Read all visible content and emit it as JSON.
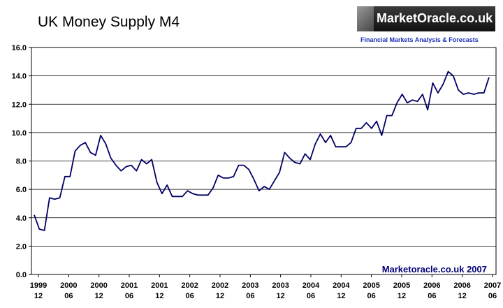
{
  "chart_data": {
    "type": "line",
    "title": "UK Money Supply M4",
    "xlabel": "",
    "ylabel": "",
    "ylim": [
      0,
      16
    ],
    "yticks": [
      "0.0",
      "2.0",
      "4.0",
      "6.0",
      "8.0",
      "10.0",
      "12.0",
      "14.0",
      "16.0"
    ],
    "grid": true,
    "series_color": "#000066",
    "x_tick_labels": [
      {
        "year": "1999",
        "month": "12"
      },
      {
        "year": "2000",
        "month": "06"
      },
      {
        "year": "2000",
        "month": "12"
      },
      {
        "year": "2001",
        "month": "06"
      },
      {
        "year": "2001",
        "month": "12"
      },
      {
        "year": "2002",
        "month": "06"
      },
      {
        "year": "2002",
        "month": "12"
      },
      {
        "year": "2003",
        "month": "06"
      },
      {
        "year": "2003",
        "month": "12"
      },
      {
        "year": "2004",
        "month": "06"
      },
      {
        "year": "2004",
        "month": "12"
      },
      {
        "year": "2005",
        "month": "06"
      },
      {
        "year": "2005",
        "month": "12"
      },
      {
        "year": "2006",
        "month": "06"
      },
      {
        "year": "2006",
        "month": "12"
      },
      {
        "year": "2007",
        "month": "06"
      }
    ],
    "values": [
      4.2,
      3.2,
      3.1,
      5.4,
      5.3,
      5.4,
      6.9,
      6.9,
      8.7,
      9.1,
      9.3,
      8.6,
      8.4,
      9.8,
      9.2,
      8.2,
      7.7,
      7.3,
      7.6,
      7.7,
      7.3,
      8.1,
      7.8,
      8.1,
      6.5,
      5.7,
      6.3,
      5.5,
      5.5,
      5.5,
      5.9,
      5.7,
      5.6,
      5.6,
      5.6,
      6.1,
      7.0,
      6.8,
      6.8,
      6.9,
      7.7,
      7.7,
      7.4,
      6.7,
      5.9,
      6.2,
      6.0,
      6.6,
      7.2,
      8.6,
      8.2,
      7.9,
      7.8,
      8.5,
      8.1,
      9.2,
      9.9,
      9.3,
      9.8,
      9.0,
      9.0,
      9.0,
      9.3,
      10.3,
      10.3,
      10.7,
      10.3,
      10.8,
      9.8,
      11.2,
      11.2,
      12.1,
      12.7,
      12.1,
      12.3,
      12.2,
      12.7,
      11.6,
      13.5,
      12.8,
      13.4,
      14.3,
      14.0,
      13.0,
      12.7,
      12.8,
      12.7,
      12.8,
      12.8,
      13.9
    ],
    "annotation": "Marketoracle.co.uk 2007"
  },
  "logo": {
    "name": "MarketOracle.co.uk",
    "tagline": "Financial Markets Analysis & Forecasts"
  }
}
